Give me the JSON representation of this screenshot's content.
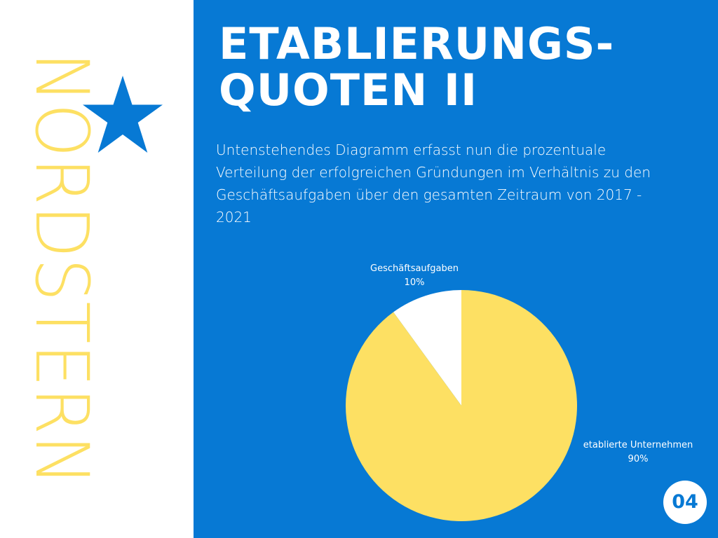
{
  "sidebar": {
    "brand": "NORDSTERN",
    "icon": "star-icon"
  },
  "colors": {
    "sidebar_bg": "#ffffff",
    "main_bg": "#0779d4",
    "brand_yellow": "#fde063",
    "star_blue": "#0779d4",
    "slice_established": "#fde063",
    "slice_closures": "#ffffff"
  },
  "main": {
    "title_line1": "ETABLIERUNGS-",
    "title_line2": "QUOTEN II",
    "description": "Untenstehendes Diagramm erfasst nun die prozentuale Verteilung der erfolgreichen Gründungen im Verhältnis zu den Geschäftsaufgaben über den gesamten Zeitraum von 2017 - 2021",
    "page_number": "04"
  },
  "chart_data": {
    "type": "pie",
    "start_angle_deg": -90,
    "direction": "counterclockwise",
    "slices": [
      {
        "label": "Geschäftsaufgaben",
        "value": 10,
        "value_label": "10%",
        "color": "#ffffff"
      },
      {
        "label": "etablierte Unternehmen",
        "value": 90,
        "value_label": "90%",
        "color": "#fde063"
      }
    ],
    "legend": "none",
    "labels": "outside"
  }
}
